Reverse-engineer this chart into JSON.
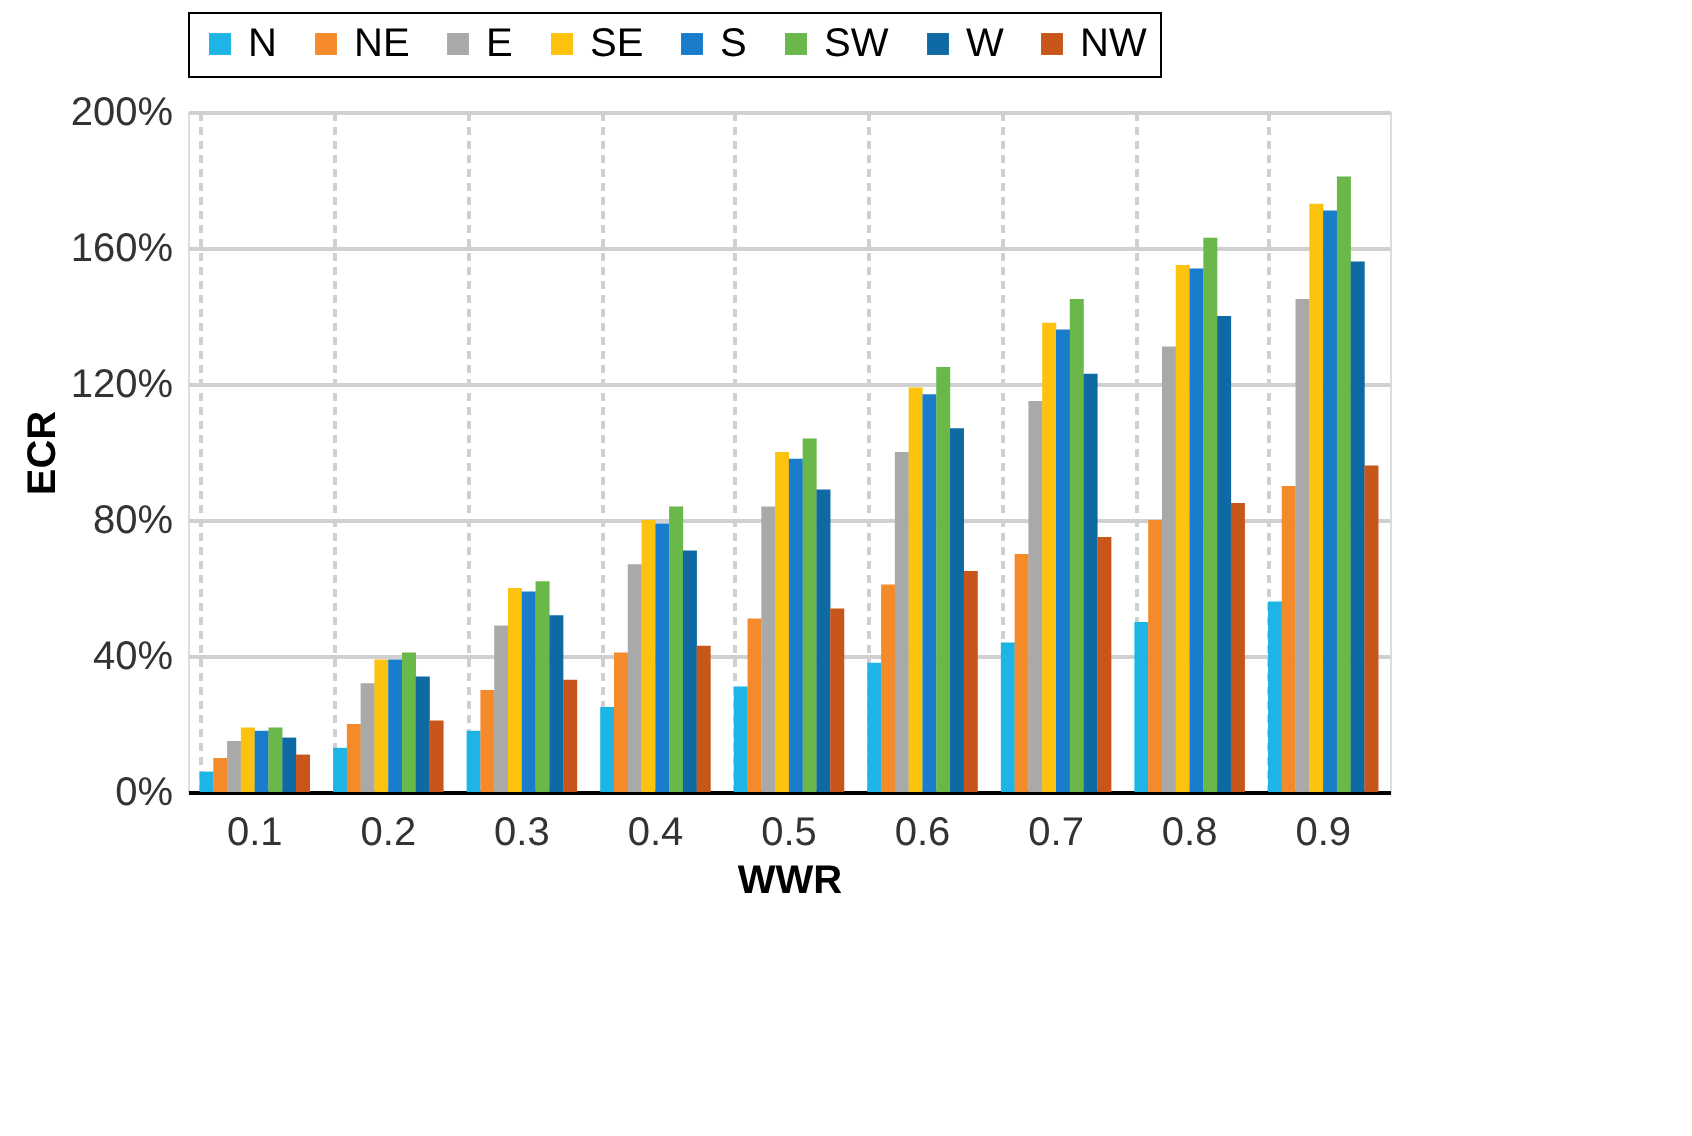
{
  "chart_data": {
    "type": "bar",
    "xlabel": "WWR",
    "ylabel": "ECR",
    "categories": [
      "0.1",
      "0.2",
      "0.3",
      "0.4",
      "0.5",
      "0.6",
      "0.7",
      "0.8",
      "0.9"
    ],
    "series": [
      {
        "name": "N",
        "color": "#1fb4e6",
        "values": [
          6,
          13,
          18,
          25,
          31,
          38,
          44,
          50,
          56
        ]
      },
      {
        "name": "NE",
        "color": "#f58a2a",
        "values": [
          10,
          20,
          30,
          41,
          51,
          61,
          70,
          80,
          90
        ]
      },
      {
        "name": "E",
        "color": "#a9a9a9",
        "values": [
          15,
          32,
          49,
          67,
          84,
          100,
          115,
          131,
          145
        ]
      },
      {
        "name": "SE",
        "color": "#fdc20d",
        "values": [
          19,
          39,
          60,
          80,
          100,
          119,
          138,
          155,
          173
        ]
      },
      {
        "name": "S",
        "color": "#1a7dcc",
        "values": [
          18,
          39,
          59,
          79,
          98,
          117,
          136,
          154,
          171
        ]
      },
      {
        "name": "SW",
        "color": "#6ab84a",
        "values": [
          19,
          41,
          62,
          84,
          104,
          125,
          145,
          163,
          181
        ]
      },
      {
        "name": "W",
        "color": "#0f6aa3",
        "values": [
          16,
          34,
          52,
          71,
          89,
          107,
          123,
          140,
          156
        ]
      },
      {
        "name": "NW",
        "color": "#c8561a",
        "values": [
          11,
          21,
          33,
          43,
          54,
          65,
          75,
          85,
          96
        ]
      }
    ],
    "ylim": [
      0,
      200
    ],
    "yticks": [
      {
        "value": 0,
        "label": "0%"
      },
      {
        "value": 40,
        "label": "40%"
      },
      {
        "value": 80,
        "label": "80%"
      },
      {
        "value": 120,
        "label": "120%"
      },
      {
        "value": 160,
        "label": "160%"
      },
      {
        "value": 200,
        "label": "200%"
      }
    ],
    "grid": true,
    "legend": "top"
  }
}
